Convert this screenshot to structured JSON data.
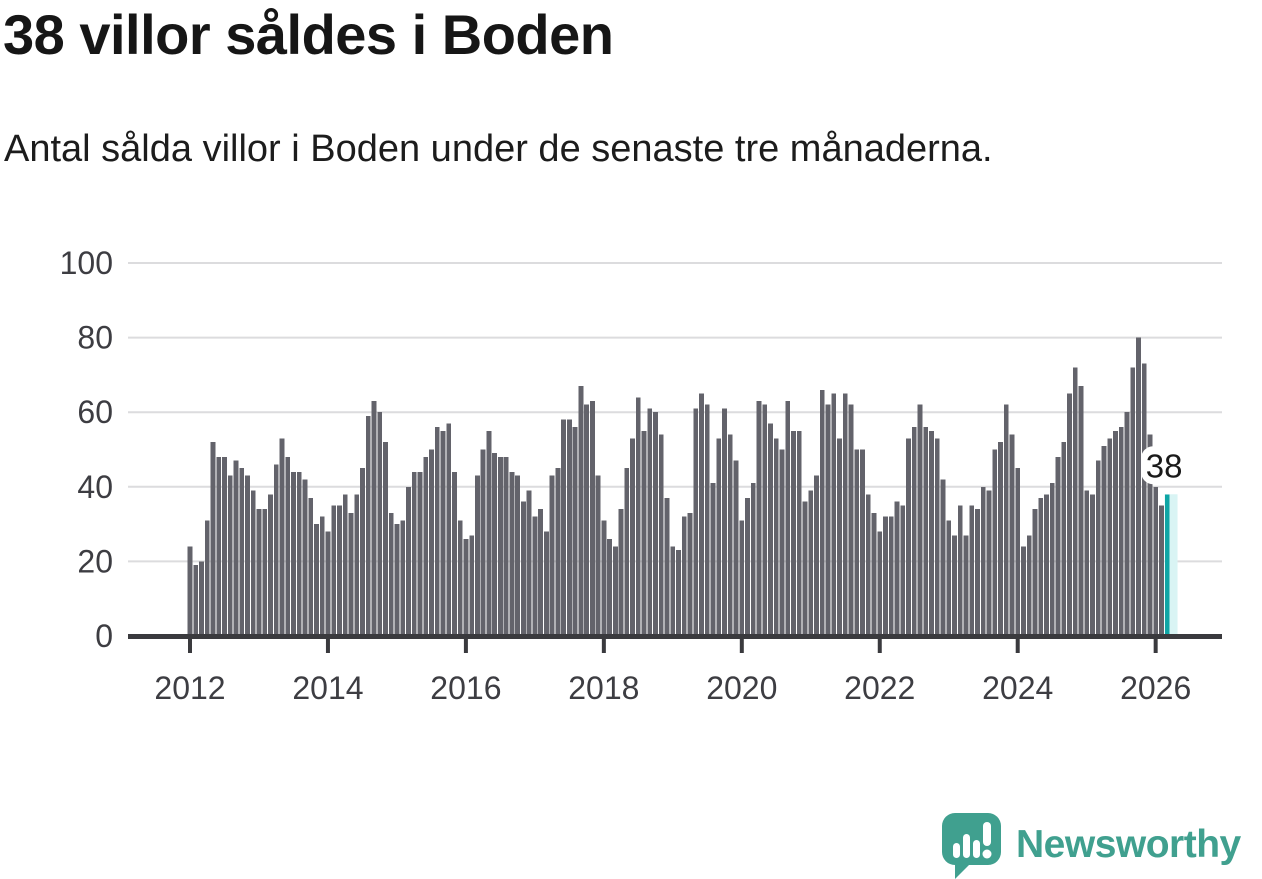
{
  "header": {
    "title": "38 villor såldes i Boden",
    "subtitle": "Antal sålda villor i Boden under de senaste tre månaderna."
  },
  "chart_data": {
    "type": "bar",
    "title": "38 villor såldes i Boden",
    "subtitle": "Antal sålda villor i Boden under de senaste tre månaderna.",
    "x_start": "2012-01",
    "x_end": "2026-03",
    "x_tick_labels": [
      "2012",
      "2014",
      "2016",
      "2018",
      "2020",
      "2022",
      "2024",
      "2026"
    ],
    "y_ticks": [
      0,
      20,
      40,
      60,
      80,
      100
    ],
    "ylim": [
      0,
      100
    ],
    "grid": true,
    "legend": "none",
    "series": [
      {
        "name": "Antal sålda villor",
        "values": [
          24,
          19,
          20,
          31,
          52,
          48,
          48,
          43,
          47,
          45,
          43,
          39,
          34,
          34,
          38,
          46,
          53,
          48,
          44,
          44,
          42,
          37,
          30,
          32,
          28,
          35,
          35,
          38,
          33,
          38,
          45,
          59,
          63,
          60,
          52,
          33,
          30,
          31,
          40,
          44,
          44,
          48,
          50,
          56,
          55,
          57,
          44,
          31,
          26,
          27,
          43,
          50,
          55,
          49,
          48,
          48,
          44,
          43,
          36,
          39,
          32,
          34,
          28,
          43,
          45,
          58,
          58,
          56,
          67,
          62,
          63,
          43,
          31,
          26,
          24,
          34,
          45,
          53,
          64,
          55,
          61,
          60,
          54,
          37,
          24,
          23,
          32,
          33,
          61,
          65,
          62,
          41,
          53,
          61,
          54,
          47,
          31,
          37,
          41,
          63,
          62,
          57,
          53,
          50,
          63,
          55,
          55,
          36,
          39,
          43,
          66,
          62,
          65,
          53,
          65,
          62,
          50,
          50,
          38,
          33,
          28,
          32,
          32,
          36,
          35,
          53,
          56,
          62,
          56,
          55,
          53,
          42,
          31,
          27,
          35,
          27,
          35,
          34,
          40,
          39,
          50,
          52,
          62,
          54,
          45,
          24,
          27,
          34,
          37,
          38,
          41,
          48,
          52,
          65,
          72,
          67,
          39,
          38,
          47,
          51,
          53,
          55,
          56,
          60,
          72,
          80,
          73,
          54,
          40,
          35,
          38
        ]
      }
    ],
    "highlight": {
      "position": "last",
      "value": 38,
      "label": "38"
    }
  },
  "footer": {
    "brand": "Newsworthy"
  },
  "colors": {
    "bar": "#63636b",
    "highlight_bar": "#0ea5a5",
    "highlight_glow": "#d9f4f4",
    "grid": "#dcdcde",
    "axis": "#3a3a3e",
    "tick_label": "#3d3d42",
    "title": "#161616",
    "text": "#1c1c1c",
    "brand": "#40a08f",
    "label_bg": "#ffffff",
    "label_text": "#1a1a1a"
  }
}
